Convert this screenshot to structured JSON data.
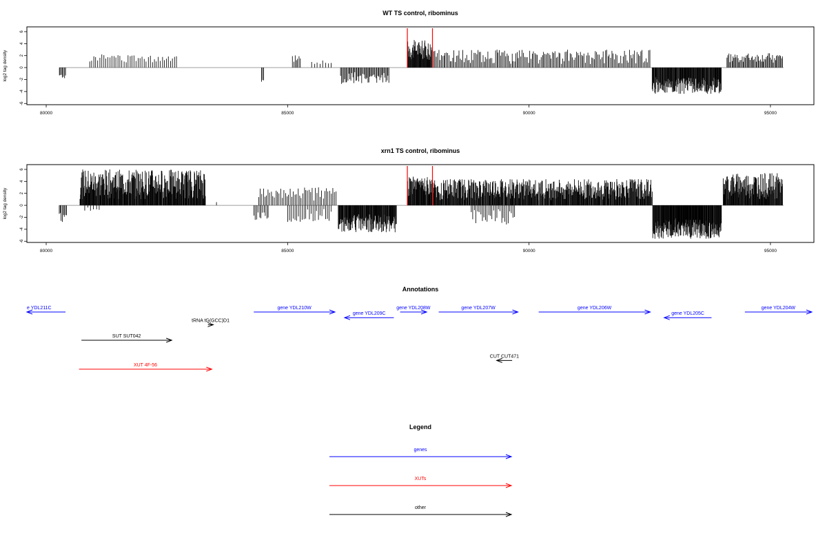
{
  "colors": {
    "gene": "#0000ff",
    "xut": "#ff0000",
    "other": "#000000",
    "marker": "#ff0000",
    "bar": "#000000",
    "baseline": "#7f7f7f"
  },
  "chart_data": [
    {
      "type": "bar",
      "title": "WT TS control, ribominus",
      "ylabel": "log2 tag density",
      "xlim": [
        79600,
        95900
      ],
      "ylim": [
        -6.2,
        6.8
      ],
      "xticks": [
        80000,
        85000,
        90000,
        95000
      ],
      "yticks": [
        -6,
        -4,
        -2,
        0,
        2,
        4,
        6
      ],
      "baseline": [
        80270,
        95270
      ],
      "markers": [
        87480,
        88000
      ],
      "segments": [
        {
          "from": 80270,
          "to": 80400,
          "sign": -1,
          "min": 1.0,
          "max": 1.8,
          "density": 0.8,
          "seed": 11
        },
        {
          "from": 80900,
          "to": 82700,
          "sign": 1,
          "min": 0.8,
          "max": 2.2,
          "density": 0.35,
          "seed": 12
        },
        {
          "from": 84460,
          "to": 84500,
          "sign": -1,
          "min": 2.0,
          "max": 2.4,
          "density": 1.0,
          "seed": 13
        },
        {
          "from": 85100,
          "to": 85260,
          "sign": 1,
          "min": 0.8,
          "max": 2.3,
          "density": 0.6,
          "seed": 14
        },
        {
          "from": 85500,
          "to": 85900,
          "sign": 1,
          "min": 0.6,
          "max": 1.2,
          "density": 0.3,
          "seed": 15
        },
        {
          "from": 86100,
          "to": 87100,
          "sign": -1,
          "min": 0.6,
          "max": 2.8,
          "density": 0.7,
          "seed": 16
        },
        {
          "from": 87480,
          "to": 88000,
          "sign": 1,
          "min": 1.2,
          "max": 4.6,
          "density": 1.6,
          "seed": 17
        },
        {
          "from": 88000,
          "to": 92500,
          "sign": 1,
          "min": 0.6,
          "max": 3.0,
          "density": 0.55,
          "seed": 18
        },
        {
          "from": 92550,
          "to": 93980,
          "sign": -1,
          "min": 1.6,
          "max": 4.4,
          "density": 1.6,
          "seed": 19
        },
        {
          "from": 94100,
          "to": 95250,
          "sign": 1,
          "min": 0.8,
          "max": 2.4,
          "density": 0.7,
          "seed": 20
        }
      ]
    },
    {
      "type": "bar",
      "title": "xrn1 TS control, ribominus",
      "ylabel": "log2 tag density",
      "xlim": [
        79600,
        95900
      ],
      "ylim": [
        -6.2,
        6.8
      ],
      "xticks": [
        80000,
        85000,
        90000,
        95000
      ],
      "yticks": [
        -6,
        -4,
        -2,
        0,
        2,
        4,
        6
      ],
      "baseline": [
        80270,
        95270
      ],
      "markers": [
        87480,
        88000
      ],
      "segments": [
        {
          "from": 80270,
          "to": 80420,
          "sign": -1,
          "min": 0.8,
          "max": 3.0,
          "density": 0.8,
          "seed": 31
        },
        {
          "from": 80700,
          "to": 83300,
          "sign": 1,
          "min": 1.0,
          "max": 6.0,
          "density": 1.6,
          "seed": 32
        },
        {
          "from": 80800,
          "to": 81100,
          "sign": -1,
          "min": 0.3,
          "max": 1.0,
          "density": 0.3,
          "seed": 33
        },
        {
          "from": 83520,
          "to": 83540,
          "sign": 1,
          "min": 0.4,
          "max": 0.6,
          "density": 1.0,
          "seed": 34
        },
        {
          "from": 84300,
          "to": 84600,
          "sign": -1,
          "min": 1.0,
          "max": 2.5,
          "density": 0.5,
          "seed": 35
        },
        {
          "from": 84400,
          "to": 86000,
          "sign": 1,
          "min": 0.8,
          "max": 3.0,
          "density": 0.45,
          "seed": 36
        },
        {
          "from": 85000,
          "to": 85900,
          "sign": -1,
          "min": 0.6,
          "max": 2.8,
          "density": 0.4,
          "seed": 37
        },
        {
          "from": 86050,
          "to": 87250,
          "sign": -1,
          "min": 1.5,
          "max": 4.5,
          "density": 1.6,
          "seed": 38
        },
        {
          "from": 87480,
          "to": 88050,
          "sign": 1,
          "min": 1.5,
          "max": 4.8,
          "density": 1.6,
          "seed": 39
        },
        {
          "from": 88050,
          "to": 92550,
          "sign": 1,
          "min": 0.8,
          "max": 4.4,
          "density": 1.4,
          "seed": 40
        },
        {
          "from": 88800,
          "to": 89700,
          "sign": -1,
          "min": 0.5,
          "max": 3.2,
          "density": 0.45,
          "seed": 41
        },
        {
          "from": 92560,
          "to": 93980,
          "sign": -1,
          "min": 2.0,
          "max": 5.6,
          "density": 2.0,
          "seed": 42
        },
        {
          "from": 94020,
          "to": 95250,
          "sign": 1,
          "min": 1.0,
          "max": 5.4,
          "density": 1.6,
          "seed": 43
        }
      ]
    }
  ],
  "annotations": {
    "title": "Annotations",
    "xlim": [
      79600,
      95900
    ],
    "features": [
      {
        "label": "e YDL211C",
        "type": "gene",
        "from": 79600,
        "to": 80400,
        "strand": "-",
        "row": 0
      },
      {
        "label": "gene YDL210W",
        "type": "gene",
        "from": 84300,
        "to": 85980,
        "strand": "+",
        "row": 0
      },
      {
        "label": "gene YDL209C",
        "type": "gene",
        "from": 86180,
        "to": 87200,
        "strand": "-",
        "row": 0.2
      },
      {
        "label": "gene YDL208W",
        "type": "gene",
        "from": 87330,
        "to": 87880,
        "strand": "+",
        "row": 0
      },
      {
        "label": "gene YDL207W",
        "type": "gene",
        "from": 88130,
        "to": 89770,
        "strand": "+",
        "row": 0
      },
      {
        "label": "gene YDL206W",
        "type": "gene",
        "from": 90200,
        "to": 92510,
        "strand": "+",
        "row": 0
      },
      {
        "label": "gene YDL205C",
        "type": "gene",
        "from": 92800,
        "to": 93780,
        "strand": "-",
        "row": 0.2
      },
      {
        "label": "gene YDL204W",
        "type": "gene",
        "from": 94470,
        "to": 95900,
        "strand": "+",
        "row": 0
      },
      {
        "label": "tRNA tG(GCC)D1",
        "type": "other",
        "from": 83350,
        "to": 83460,
        "strand": "+",
        "row": 0.45
      },
      {
        "label": "SUT SUT042",
        "type": "other",
        "from": 80730,
        "to": 82600,
        "strand": "+",
        "row": 1
      },
      {
        "label": "CUT CUT471",
        "type": "other",
        "from": 89330,
        "to": 89650,
        "strand": "-",
        "row": 1.7
      },
      {
        "label": "XUT 4F-56",
        "type": "xut",
        "from": 80680,
        "to": 83430,
        "strand": "+",
        "row": 2
      }
    ]
  },
  "legend": {
    "title": "Legend",
    "items": [
      {
        "label": "genes",
        "type": "gene"
      },
      {
        "label": "XUTs",
        "type": "xut"
      },
      {
        "label": "other",
        "type": "other"
      }
    ]
  }
}
